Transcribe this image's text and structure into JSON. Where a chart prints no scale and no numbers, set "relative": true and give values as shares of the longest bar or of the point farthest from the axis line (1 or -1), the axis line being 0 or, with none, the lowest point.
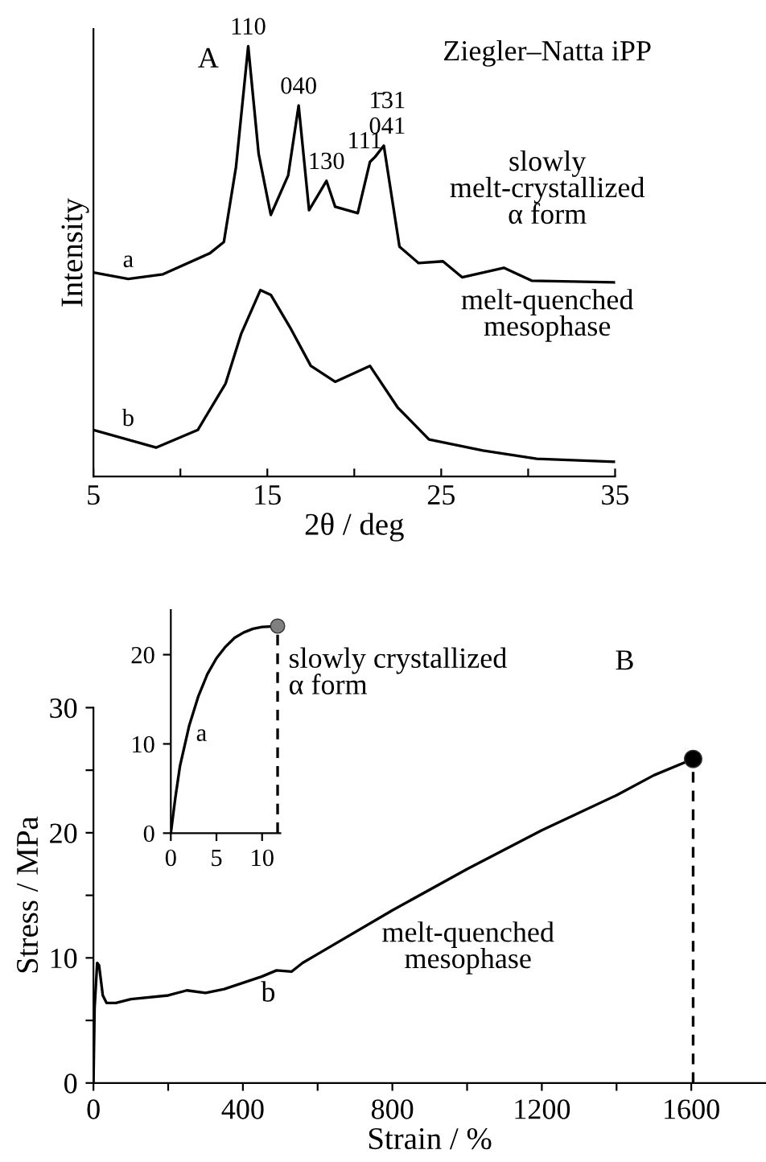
{
  "chart_data": [
    {
      "type": "line",
      "title": "Ziegler–Natta iPP",
      "xlabel": "2θ / deg",
      "ylabel": "Intensity",
      "relative": true,
      "xlim": [
        5,
        35
      ],
      "xticks": [
        5,
        {
          "value": 10,
          "label": null
        },
        15,
        {
          "value": 20,
          "label": null
        },
        25,
        {
          "value": 30,
          "label": null
        },
        35
      ],
      "tick_labels": "x",
      "series": [
        {
          "color": "#000000",
          "x": [
            5,
            7,
            9,
            11.7,
            12.5,
            13.2,
            13.9,
            14.5,
            15.2,
            16.2,
            16.8,
            17.4,
            18.4,
            18.9,
            20.2,
            20.9,
            21.2,
            21.7,
            22.6,
            23.7,
            25.1,
            26.2,
            28.6,
            30.2,
            35
          ],
          "values": [
            0.474,
            0.459,
            0.47,
            0.519,
            0.545,
            0.72,
            1.0,
            0.75,
            0.608,
            0.7,
            0.862,
            0.619,
            0.687,
            0.627,
            0.612,
            0.731,
            0.743,
            0.769,
            0.534,
            0.496,
            0.5,
            0.463,
            0.485,
            0.455,
            0.451
          ]
        },
        {
          "color": "#000000",
          "x": [
            5,
            8.6,
            11,
            12.6,
            13.5,
            14.6,
            15.2,
            16.3,
            17.5,
            18.9,
            20.9,
            22.5,
            24.3,
            27.4,
            30.5,
            35
          ],
          "values": [
            0.108,
            0.067,
            0.108,
            0.216,
            0.332,
            0.433,
            0.422,
            0.347,
            0.257,
            0.22,
            0.257,
            0.16,
            0.086,
            0.06,
            0.041,
            0.034
          ]
        }
      ],
      "annotations": [
        "A",
        "slowly\nmelt-crystallized\nα form",
        "melt-quenched\nmesophase",
        {
          "text": "110",
          "x": 13.9,
          "y": 1.0
        },
        {
          "text": "040",
          "x": 16.8,
          "y": 0.862
        },
        {
          "text": "130",
          "x": 18.4,
          "y": 0.687
        },
        {
          "text": "111",
          "x": 20.6,
          "y": 0.735
        },
        {
          "text": "1̄31\n041",
          "x": 21.9,
          "y": 0.769
        },
        {
          "text": "a",
          "x": 7,
          "y": 0.459
        },
        {
          "text": "b",
          "x": 7,
          "y": 0.09
        }
      ]
    },
    {
      "type": "line",
      "xlabel": "Strain / %",
      "ylabel": "Stress / MPa",
      "xlim": [
        0,
        1800
      ],
      "ylim": [
        0,
        30
      ],
      "xticks": [
        0,
        {
          "value": 200,
          "label": null
        },
        400,
        {
          "value": 600,
          "label": null
        },
        800,
        {
          "value": 1000,
          "label": null
        },
        1200,
        {
          "value": 1400,
          "label": null
        },
        1600
      ],
      "yticks": [
        0,
        {
          "value": 5,
          "label": null
        },
        10,
        {
          "value": 15,
          "label": null
        },
        20,
        {
          "value": 25,
          "label": null
        },
        30
      ],
      "series": [
        {
          "color": "#000000",
          "x": [
            0,
            3,
            10,
            15,
            25,
            35,
            60,
            100,
            200,
            250,
            300,
            350,
            400,
            450,
            490,
            530,
            560,
            600,
            800,
            1000,
            1200,
            1400,
            1500,
            1605
          ],
          "values": [
            0,
            6,
            9.6,
            9.4,
            7,
            6.4,
            6.4,
            6.7,
            7.0,
            7.4,
            7.2,
            7.5,
            8.0,
            8.5,
            9.0,
            8.9,
            9.6,
            10.3,
            13.8,
            17.1,
            20.2,
            23.0,
            24.6,
            25.9
          ]
        },
        {
          "type": "scatter",
          "color": "#000000",
          "marker": "circle",
          "x": [
            1605
          ],
          "values": [
            25.9
          ]
        }
      ],
      "ref_lines": [
        {
          "axis": "x",
          "value": 1605,
          "line_style": "dashed",
          "color": "#000000"
        }
      ],
      "annotations": [
        "B",
        "slowly crystallized\nα form",
        "melt-quenched\nmesophase",
        "b"
      ]
    },
    {
      "type": "line",
      "xlim": [
        0,
        12
      ],
      "ylim": [
        0,
        25
      ],
      "xticks": [
        0,
        5,
        10
      ],
      "yticks": [
        0,
        10,
        20
      ],
      "series": [
        {
          "color": "#000000",
          "x": [
            0,
            0.5,
            1,
            2,
            3,
            4,
            5,
            6,
            7,
            8,
            9,
            10,
            11.7
          ],
          "values": [
            0,
            4,
            7.5,
            12,
            15.3,
            17.8,
            19.6,
            20.9,
            21.9,
            22.5,
            22.9,
            23.1,
            23.2
          ]
        },
        {
          "type": "scatter",
          "color": "#808080",
          "marker": "circle",
          "x": [
            11.7
          ],
          "values": [
            23.2
          ]
        }
      ],
      "ref_lines": [
        {
          "axis": "x",
          "value": 11.7,
          "line_style": "dashed",
          "color": "#000000"
        }
      ],
      "annotations": [
        "a"
      ]
    }
  ]
}
